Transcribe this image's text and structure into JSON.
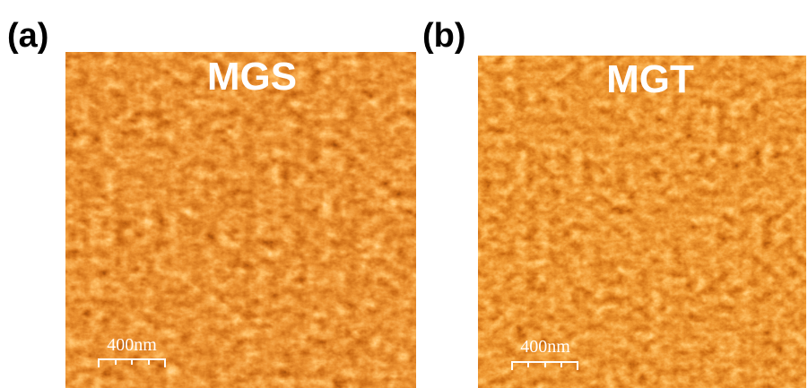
{
  "panels": [
    {
      "label": "(a)",
      "title": "MGS",
      "scale_bar": "400nm"
    },
    {
      "label": "(b)",
      "title": "MGT",
      "scale_bar": "400nm"
    }
  ]
}
